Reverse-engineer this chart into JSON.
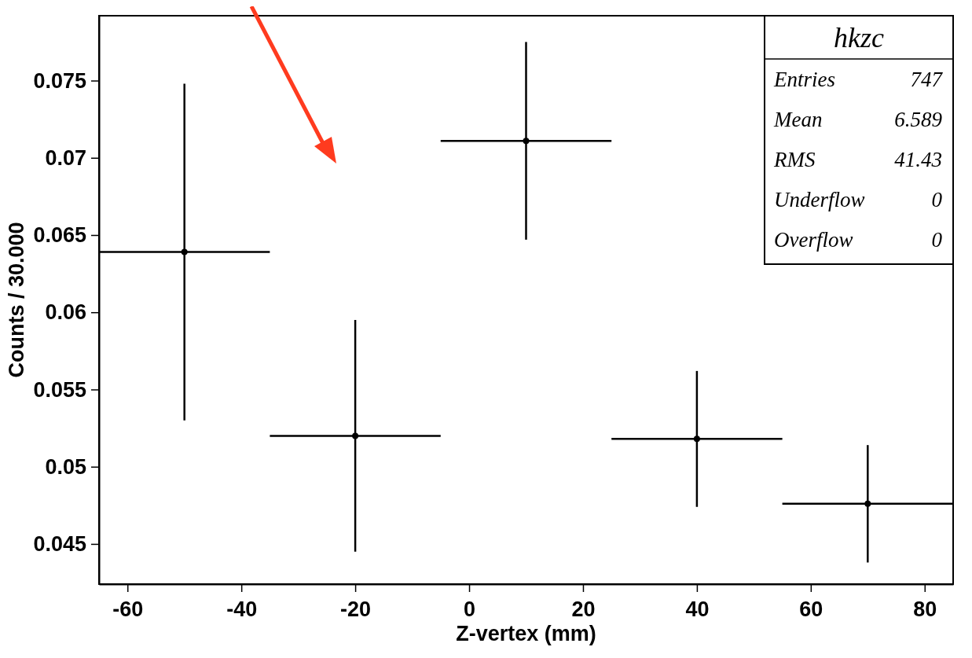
{
  "chart_data": {
    "type": "scatter",
    "xlabel": "Z-vertex (mm)",
    "ylabel": "Counts / 30.000",
    "x": [
      -50,
      -20,
      10,
      40,
      70
    ],
    "values": [
      0.0639,
      0.052,
      0.0711,
      0.0518,
      0.0476
    ],
    "errors": [
      0.0109,
      0.0075,
      0.0064,
      0.0044,
      0.0038
    ],
    "xerrors": [
      15,
      15,
      15,
      15,
      15
    ],
    "color": "#000000",
    "grid": false,
    "xlim": [
      -65,
      85
    ],
    "xticks": [
      -60,
      -40,
      -20,
      0,
      20,
      40,
      60,
      80
    ],
    "ylim": [
      0.0424,
      0.0792
    ],
    "yticks": [
      0.045,
      0.05,
      0.055,
      0.06,
      0.065,
      0.07,
      0.075
    ],
    "annotations": [
      "hkzc",
      "Entries",
      "747",
      "Mean",
      "6.589",
      "RMS",
      "41.43",
      "Underflow",
      "0",
      "Overflow",
      "0"
    ]
  }
}
